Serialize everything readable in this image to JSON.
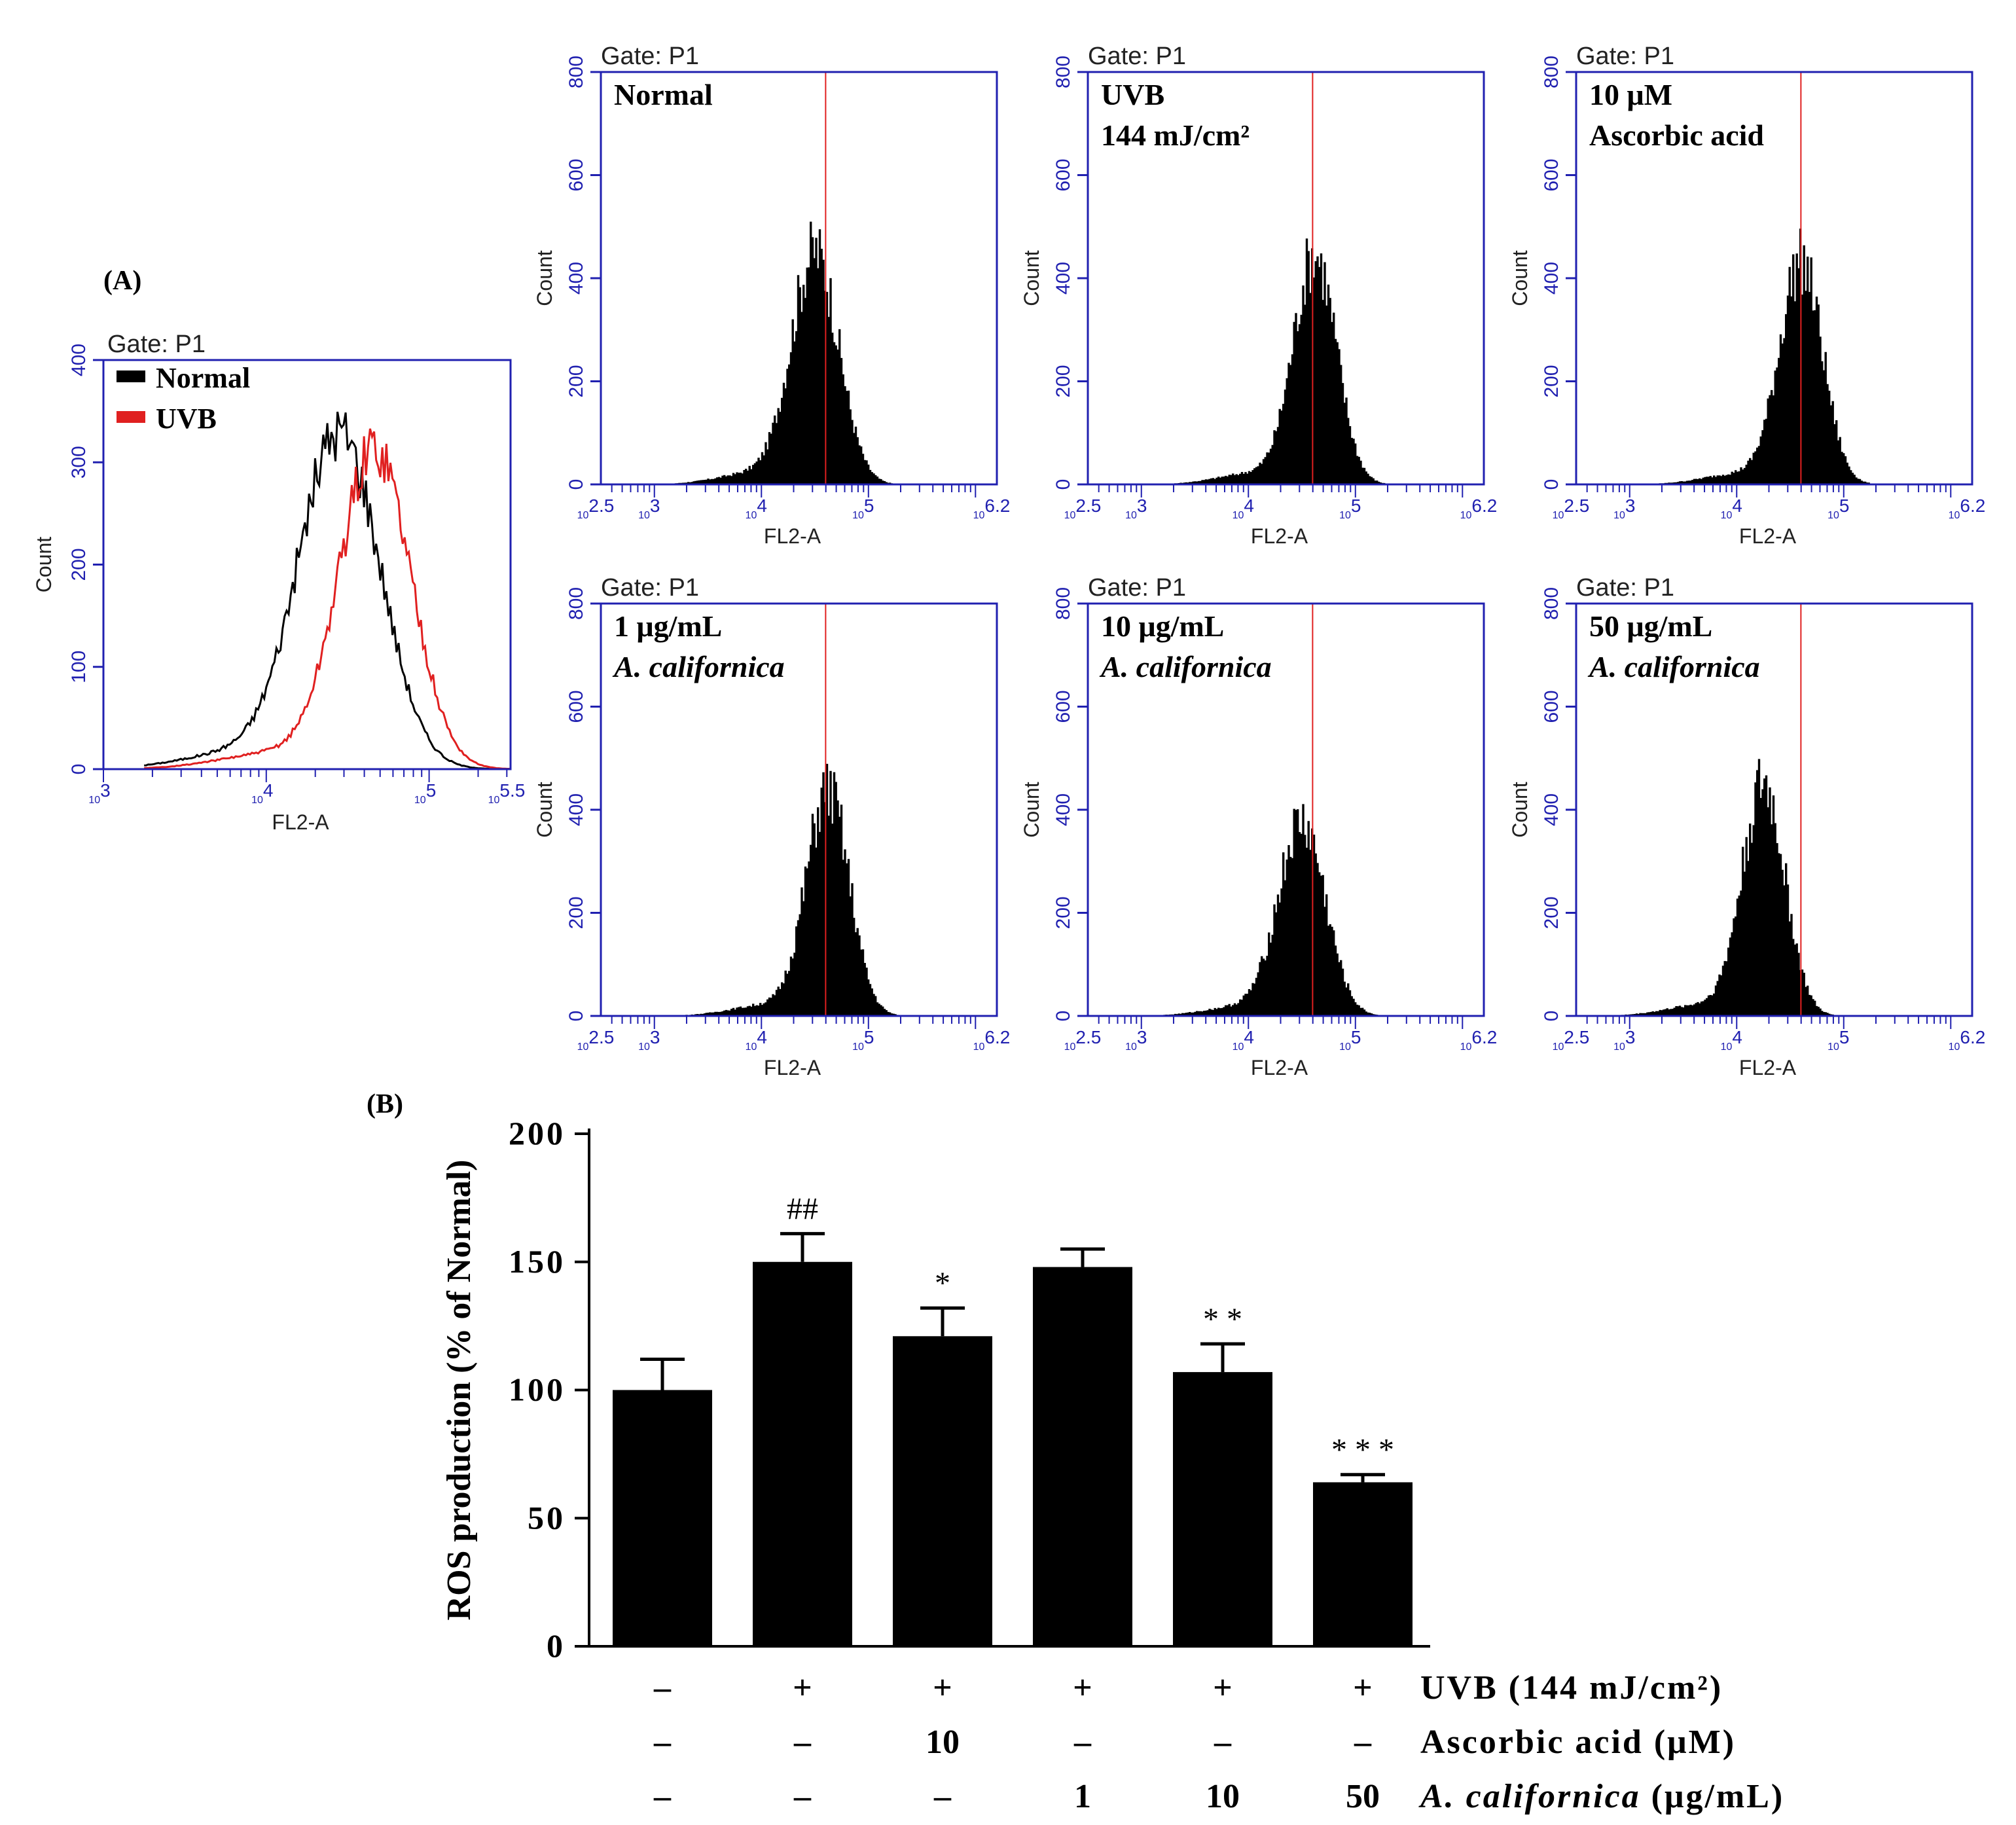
{
  "panel_a_label": "(A)",
  "panel_b_label": "(B)",
  "histograms": {
    "gate_text": "Gate: P1",
    "x_label": "FL2-A",
    "y_label": "Count",
    "y_ticks": [
      "0",
      "200",
      "400",
      "600",
      "800"
    ],
    "x_ticks": [
      "2.5",
      "3",
      "4",
      "5",
      "6.2"
    ],
    "x_tick_prefix": "10",
    "x_range": [
      2.5,
      6.2
    ],
    "y_range": [
      0,
      800
    ],
    "bar_color": "#000000",
    "axis_color": "#2020b0",
    "marker_color": "#e02020",
    "marker_log_position": 4.6,
    "panels": [
      {
        "label_lines": [
          "Normal"
        ],
        "italic_last": false,
        "peak_log": 4.5,
        "peak_count": 460,
        "width": 0.22
      },
      {
        "label_lines": [
          "UVB",
          "144 mJ/cm²"
        ],
        "italic_last": false,
        "peak_log": 4.62,
        "peak_count": 455,
        "width": 0.2
      },
      {
        "label_lines": [
          "10 μM",
          "Ascorbic  acid"
        ],
        "italic_last": false,
        "peak_log": 4.6,
        "peak_count": 440,
        "width": 0.2
      },
      {
        "label_lines": [
          "1 μg/mL",
          "A. californica"
        ],
        "italic_last": true,
        "peak_log": 4.62,
        "peak_count": 445,
        "width": 0.2
      },
      {
        "label_lines": [
          "10 μg/mL",
          "A. californica"
        ],
        "italic_last": true,
        "peak_log": 4.5,
        "peak_count": 380,
        "width": 0.22
      },
      {
        "label_lines": [
          "50 μg/mL",
          "A. californica"
        ],
        "italic_last": true,
        "peak_log": 4.25,
        "peak_count": 455,
        "width": 0.2
      }
    ]
  },
  "overlay": {
    "gate_text": "Gate: P1",
    "x_label": "FL2-A",
    "y_label": "Count",
    "y_ticks": [
      "0",
      "100",
      "200",
      "300",
      "400"
    ],
    "x_ticks": [
      "3",
      "4",
      "5",
      "5.5"
    ],
    "x_tick_prefix": "10",
    "x_range": [
      3,
      5.5
    ],
    "y_range": [
      0,
      400
    ],
    "legend": [
      {
        "label": "Normal",
        "color": "#000000"
      },
      {
        "label": "UVB",
        "color": "#e02020"
      }
    ],
    "series": [
      {
        "name": "Normal",
        "color": "#000000",
        "peak_log": 4.45,
        "peak_count": 330,
        "width": 0.25
      },
      {
        "name": "UVB",
        "color": "#e02020",
        "peak_log": 4.67,
        "peak_count": 315,
        "width": 0.22
      }
    ]
  },
  "chart_data": {
    "type": "bar",
    "title": "",
    "ylabel": "ROS production (% of Normal)",
    "ylim": [
      0,
      200
    ],
    "y_ticks": [
      "0",
      "50",
      "100",
      "150",
      "200"
    ],
    "categories": [
      "Normal",
      "UVB",
      "UVB + Ascorbic acid 10",
      "UVB + A. californica 1",
      "UVB + A. californica 10",
      "UVB + A. californica 50"
    ],
    "values": [
      100,
      150,
      121,
      148,
      107,
      64
    ],
    "errors": [
      12,
      11,
      11,
      7,
      11,
      3
    ],
    "significance": [
      "",
      "##",
      "*",
      "",
      "* *",
      "* * *"
    ],
    "bar_color": "#000000",
    "treatment_rows": [
      {
        "label": "UVB (144 mJ/cm²)",
        "italic_part": "",
        "cells": [
          "–",
          "+",
          "+",
          "+",
          "+",
          "+"
        ]
      },
      {
        "label": "Ascorbic acid (μM)",
        "italic_part": "",
        "cells": [
          "–",
          "–",
          "10",
          "–",
          "–",
          "–"
        ]
      },
      {
        "label": " (μg/mL)",
        "italic_part": "A. californica",
        "cells": [
          "–",
          "–",
          "–",
          "1",
          "10",
          "50"
        ]
      }
    ]
  }
}
